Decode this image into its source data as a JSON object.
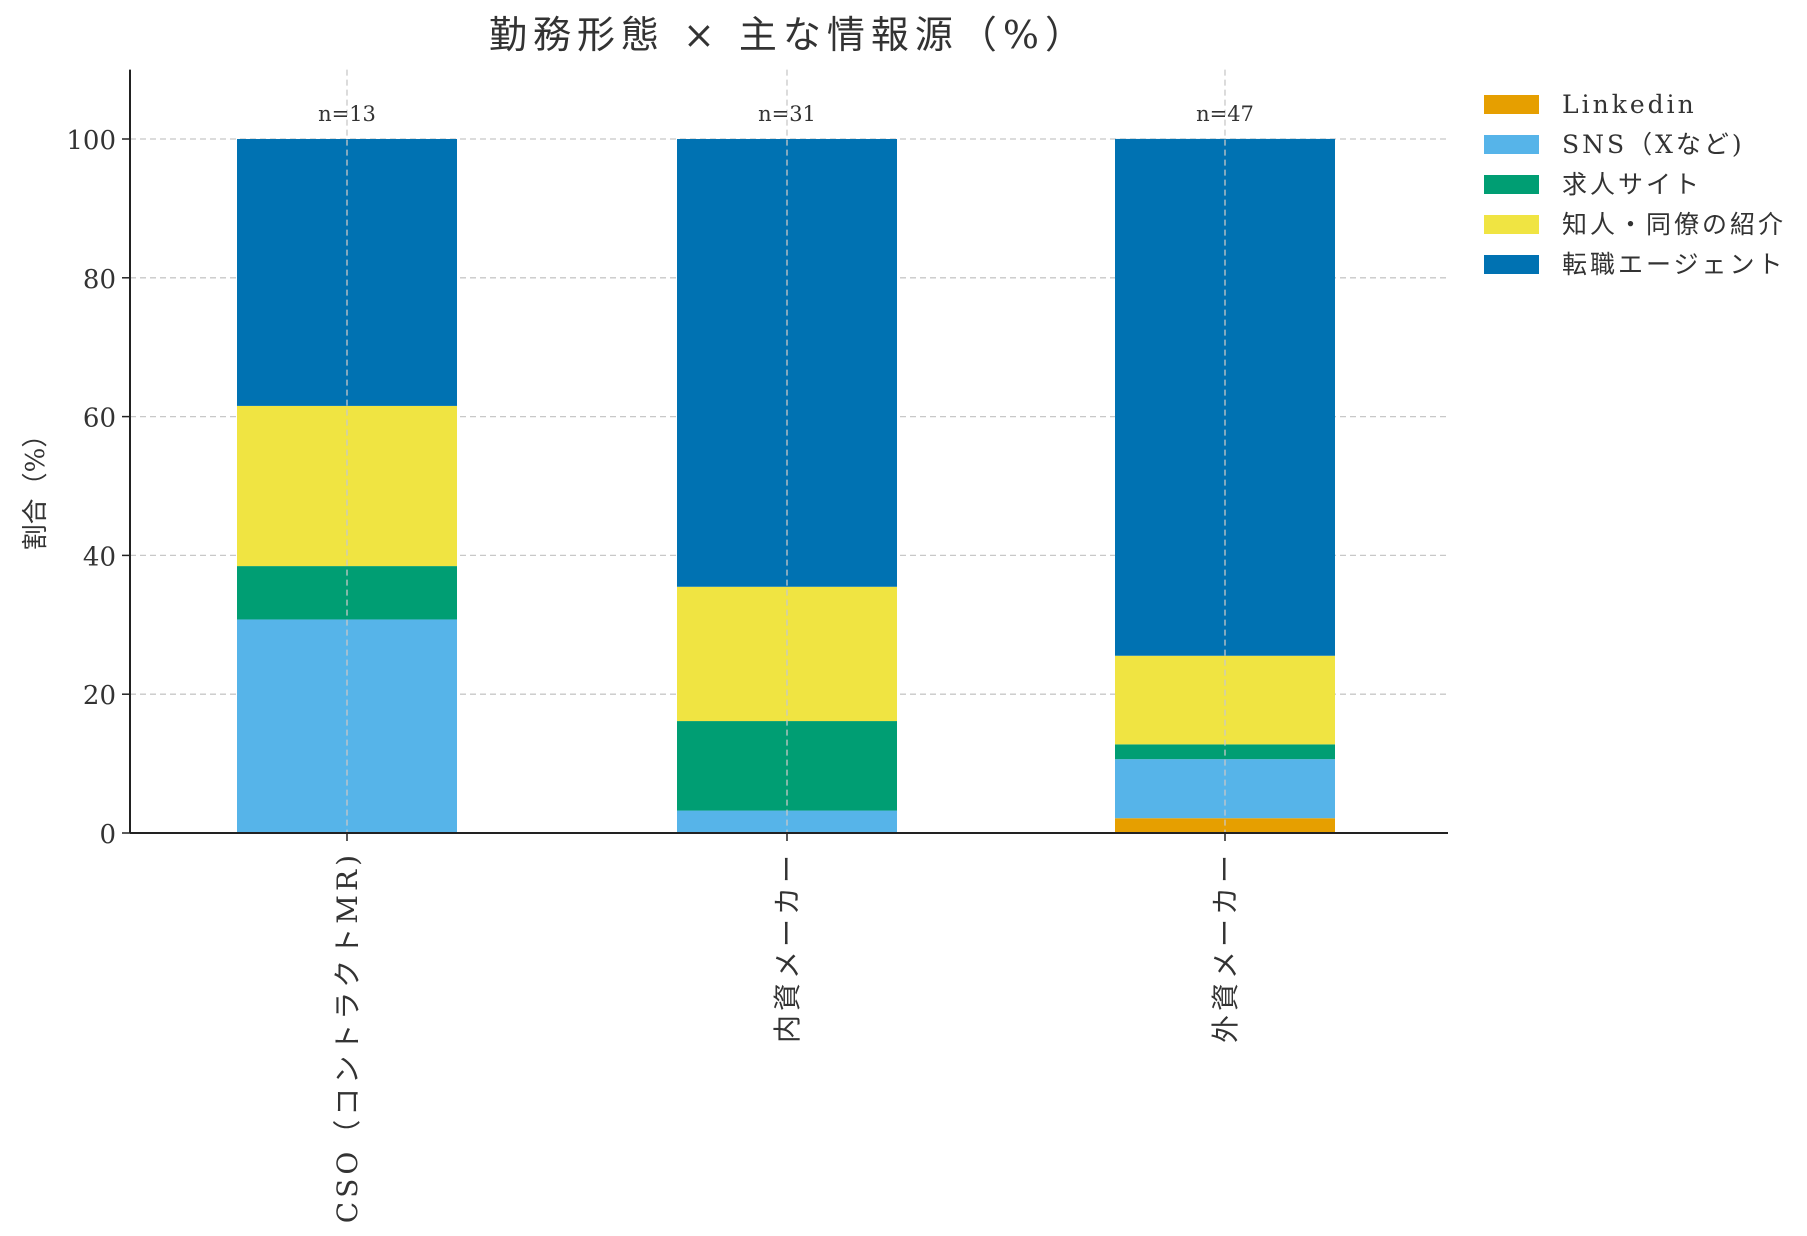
{
  "chart_data": {
    "type": "bar",
    "stacked": true,
    "title": "勤務形態 × 主な情報源（%）",
    "xlabel": "",
    "ylabel": "割合（%）",
    "ylim": [
      0,
      110
    ],
    "yticks": [
      0,
      20,
      40,
      60,
      80,
      100
    ],
    "grid": true,
    "legend_position": "top-right-outside",
    "categories": [
      "CSO（コントラクトMR)",
      "内資メーカー",
      "外資メーカー"
    ],
    "n_labels": [
      "n=13",
      "n=31",
      "n=47"
    ],
    "series": [
      {
        "name": "Linkedin",
        "color": "#E69F00",
        "values": [
          0,
          0,
          2.13
        ]
      },
      {
        "name": "SNS（Xなど)",
        "color": "#56B4E9",
        "values": [
          30.77,
          3.23,
          8.51
        ]
      },
      {
        "name": "求人サイト",
        "color": "#009E73",
        "values": [
          7.69,
          12.9,
          2.13
        ]
      },
      {
        "name": "知人・同僚の紹介",
        "color": "#F0E442",
        "values": [
          23.08,
          19.35,
          12.77
        ]
      },
      {
        "name": "転職エージェント",
        "color": "#0072B2",
        "values": [
          38.46,
          64.52,
          74.47
        ]
      }
    ]
  }
}
